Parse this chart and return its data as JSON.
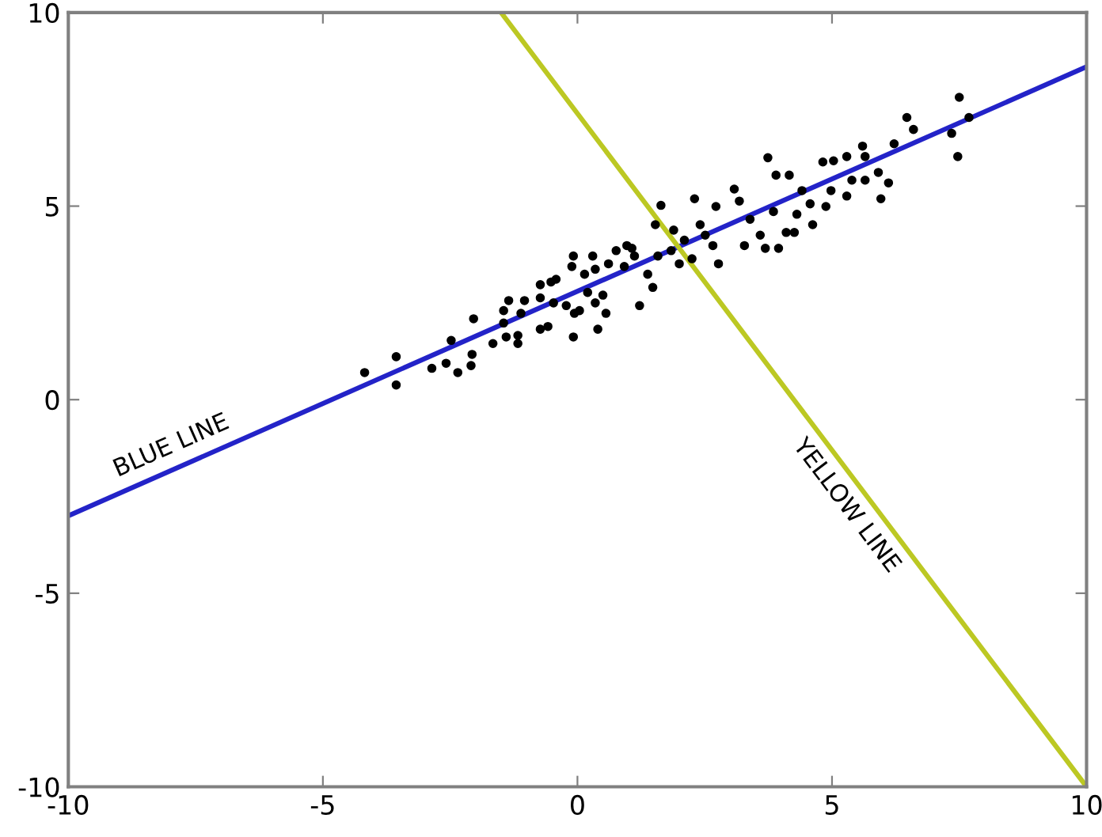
{
  "chart_data": {
    "type": "scatter",
    "xlim": [
      -10,
      10
    ],
    "ylim": [
      -10,
      10
    ],
    "xticks": [
      -10,
      -5,
      0,
      5,
      10
    ],
    "yticks": [
      -10,
      -5,
      0,
      5,
      10
    ],
    "grid": false,
    "legend": false,
    "marker": "circle",
    "series": [
      {
        "color": "#000000",
        "x": [
          -4.18,
          -3.56,
          -3.56,
          -2.86,
          -2.58,
          -2.48,
          -2.35,
          -2.07,
          -2.09,
          -2.04,
          -1.66,
          -1.4,
          -1.17,
          -1.17,
          -1.45,
          -1.35,
          -1.04,
          -1.45,
          -1.11,
          -0.73,
          -0.58,
          -0.73,
          -0.52,
          -0.42,
          -0.73,
          -0.47,
          -0.22,
          -0.08,
          0.3,
          -0.11,
          0.14,
          0.2,
          -0.06,
          0.04,
          0.35,
          0.4,
          -0.08,
          0.56,
          0.5,
          0.61,
          0.76,
          0.97,
          0.92,
          1.12,
          0.35,
          1.22,
          1.48,
          1.38,
          1.07,
          1.58,
          1.64,
          1.53,
          1.89,
          1.84,
          2.0,
          2.1,
          2.25,
          2.41,
          2.3,
          2.51,
          2.72,
          2.77,
          2.66,
          3.08,
          3.18,
          3.28,
          3.39,
          3.59,
          3.74,
          3.69,
          3.9,
          3.85,
          3.95,
          4.16,
          4.1,
          4.26,
          4.31,
          4.41,
          4.57,
          4.62,
          4.82,
          5.03,
          4.98,
          4.88,
          5.29,
          5.29,
          5.39,
          5.6,
          5.65,
          5.65,
          5.91,
          5.96,
          6.11,
          6.22,
          6.47,
          6.6,
          7.5,
          7.69,
          7.35,
          7.47
        ],
        "values": [
          0.7,
          1.11,
          0.38,
          0.81,
          0.94,
          1.53,
          0.7,
          1.17,
          0.88,
          2.09,
          1.45,
          1.62,
          1.66,
          1.45,
          1.98,
          2.56,
          2.56,
          2.3,
          2.23,
          1.82,
          1.89,
          2.97,
          3.04,
          3.11,
          2.63,
          2.5,
          2.43,
          3.71,
          3.71,
          3.44,
          3.24,
          2.77,
          2.23,
          2.3,
          2.5,
          1.82,
          1.62,
          2.23,
          2.7,
          3.51,
          3.85,
          3.98,
          3.44,
          3.71,
          3.37,
          2.43,
          2.9,
          3.24,
          3.91,
          3.71,
          5.02,
          4.52,
          4.38,
          3.85,
          3.51,
          4.12,
          3.64,
          4.52,
          5.19,
          4.25,
          4.99,
          3.51,
          3.98,
          5.44,
          5.13,
          3.98,
          4.66,
          4.25,
          6.25,
          3.91,
          5.8,
          4.86,
          3.91,
          5.8,
          4.32,
          4.32,
          4.79,
          5.4,
          5.06,
          4.52,
          6.14,
          6.17,
          5.4,
          4.99,
          6.28,
          5.26,
          5.67,
          6.55,
          6.28,
          5.67,
          5.87,
          5.19,
          5.6,
          6.61,
          7.29,
          6.98,
          7.81,
          7.29,
          6.88,
          6.28
        ]
      },
      {
        "type": "line",
        "color": "#2323c8",
        "x": [
          -10,
          10
        ],
        "values": [
          -3.0,
          8.6
        ],
        "marker": "none"
      },
      {
        "type": "line",
        "color": "#bcc823",
        "x": [
          -1.5,
          10
        ],
        "values": [
          10,
          -10
        ],
        "marker": "none"
      }
    ],
    "annotations": [
      "BLUE LINE",
      "YELLOW LINE"
    ]
  }
}
